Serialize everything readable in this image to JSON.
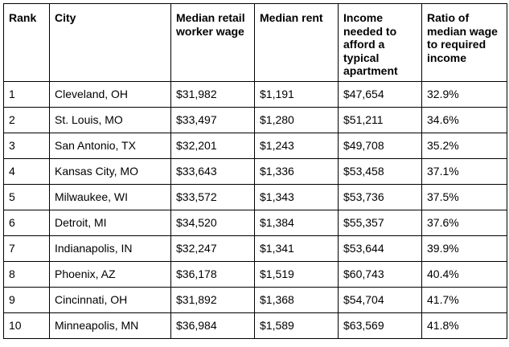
{
  "table": {
    "headers": [
      "Rank",
      "City",
      "Median retail worker wage",
      "Median rent",
      "Income needed to afford a typical apartment",
      "Ratio of median wage to required income"
    ],
    "rows": [
      [
        "1",
        "Cleveland, OH",
        "$31,982",
        "$1,191",
        "$47,654",
        "32.9%"
      ],
      [
        "2",
        "St. Louis, MO",
        "$33,497",
        "$1,280",
        "$51,211",
        "34.6%"
      ],
      [
        "3",
        "San Antonio, TX",
        "$32,201",
        "$1,243",
        "$49,708",
        "35.2%"
      ],
      [
        "4",
        "Kansas City, MO",
        "$33,643",
        "$1,336",
        "$53,458",
        "37.1%"
      ],
      [
        "5",
        "Milwaukee, WI",
        "$33,572",
        "$1,343",
        "$53,736",
        "37.5%"
      ],
      [
        "6",
        "Detroit, MI",
        "$34,520",
        "$1,384",
        "$55,357",
        "37.6%"
      ],
      [
        "7",
        "Indianapolis, IN",
        "$32,247",
        "$1,341",
        "$53,644",
        "39.9%"
      ],
      [
        "8",
        "Phoenix, AZ",
        "$36,178",
        "$1,519",
        "$60,743",
        "40.4%"
      ],
      [
        "9",
        "Cincinnati, OH",
        "$31,892",
        "$1,368",
        "$54,704",
        "41.7%"
      ],
      [
        "10",
        "Minneapolis, MN",
        "$36,984",
        "$1,589",
        "$63,569",
        "41.8%"
      ]
    ]
  }
}
